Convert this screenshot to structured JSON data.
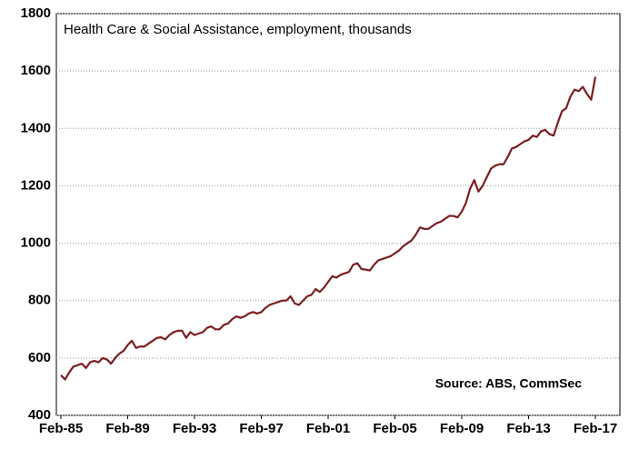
{
  "chart_data": {
    "type": "line",
    "title": "Health Care & Social Assistance, employment, thousands",
    "source": "Source: ABS, CommSec",
    "categories": [
      "Feb-85",
      null,
      null,
      null,
      null,
      null,
      null,
      null,
      null,
      null,
      null,
      null,
      null,
      null,
      null,
      null,
      "Feb-89",
      null,
      null,
      null,
      null,
      null,
      null,
      null,
      null,
      null,
      null,
      null,
      null,
      null,
      null,
      null,
      "Feb-93",
      null,
      null,
      null,
      null,
      null,
      null,
      null,
      null,
      null,
      null,
      null,
      null,
      null,
      null,
      null,
      "Feb-97",
      null,
      null,
      null,
      null,
      null,
      null,
      null,
      null,
      null,
      null,
      null,
      null,
      null,
      null,
      null,
      "Feb-01",
      null,
      null,
      null,
      null,
      null,
      null,
      null,
      null,
      null,
      null,
      null,
      null,
      null,
      null,
      null,
      "Feb-05",
      null,
      null,
      null,
      null,
      null,
      null,
      null,
      null,
      null,
      null,
      null,
      null,
      null,
      null,
      null,
      "Feb-09",
      null,
      null,
      null,
      null,
      null,
      null,
      null,
      null,
      null,
      null,
      null,
      null,
      null,
      null,
      null,
      "Feb-13",
      null,
      null,
      null,
      null,
      null,
      null,
      null,
      null,
      null,
      null,
      null,
      null,
      null,
      null,
      null,
      "Feb-17"
    ],
    "values": [
      540,
      525,
      550,
      570,
      575,
      580,
      565,
      585,
      590,
      585,
      600,
      595,
      580,
      600,
      615,
      625,
      645,
      660,
      635,
      640,
      640,
      650,
      660,
      670,
      672,
      665,
      680,
      690,
      695,
      695,
      670,
      690,
      680,
      685,
      690,
      705,
      710,
      700,
      700,
      715,
      720,
      735,
      745,
      740,
      745,
      755,
      760,
      755,
      760,
      775,
      785,
      790,
      795,
      800,
      800,
      815,
      790,
      785,
      800,
      815,
      820,
      840,
      830,
      845,
      865,
      885,
      880,
      890,
      895,
      900,
      925,
      930,
      910,
      908,
      905,
      925,
      940,
      945,
      950,
      955,
      965,
      975,
      990,
      1000,
      1010,
      1030,
      1055,
      1050,
      1050,
      1060,
      1070,
      1075,
      1085,
      1095,
      1095,
      1090,
      1110,
      1140,
      1190,
      1220,
      1180,
      1200,
      1230,
      1260,
      1270,
      1275,
      1275,
      1300,
      1330,
      1335,
      1345,
      1355,
      1360,
      1375,
      1370,
      1390,
      1395,
      1380,
      1375,
      1420,
      1460,
      1470,
      1510,
      1535,
      1530,
      1545,
      1520,
      1500,
      1580
    ],
    "color": "#7b1e22",
    "ylim": [
      400,
      1800
    ],
    "yticks": [
      400,
      600,
      800,
      1000,
      1200,
      1400,
      1600,
      1800
    ],
    "grid": true
  }
}
